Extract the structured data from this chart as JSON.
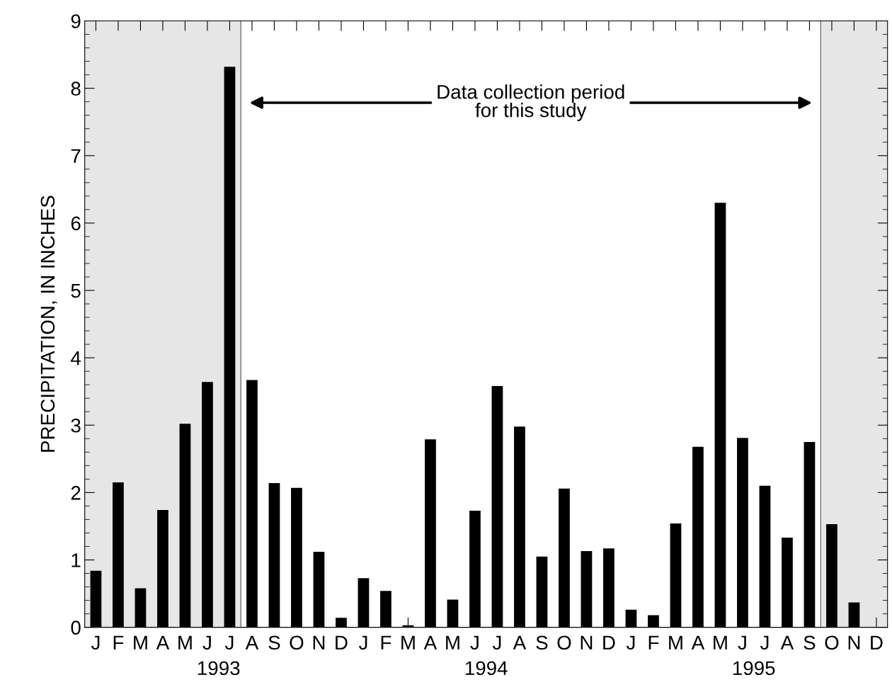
{
  "chart_data": {
    "type": "bar",
    "ylabel": "PRECIPITATION, IN INCHES",
    "categories": [
      "J",
      "F",
      "M",
      "A",
      "M",
      "J",
      "J",
      "A",
      "S",
      "O",
      "N",
      "D",
      "J",
      "F",
      "M",
      "A",
      "M",
      "J",
      "J",
      "A",
      "S",
      "O",
      "N",
      "D",
      "J",
      "F",
      "M",
      "A",
      "M",
      "J",
      "J",
      "A",
      "S",
      "O",
      "N",
      "D"
    ],
    "values": [
      0.84,
      2.15,
      0.58,
      1.74,
      3.02,
      3.64,
      8.32,
      3.67,
      2.14,
      2.07,
      1.12,
      0.14,
      0.73,
      0.54,
      0.03,
      2.79,
      0.41,
      1.73,
      3.58,
      2.98,
      1.05,
      2.06,
      1.13,
      1.17,
      0.26,
      0.18,
      1.54,
      2.68,
      6.3,
      2.81,
      2.1,
      1.33,
      2.75,
      1.53,
      0.37,
      0
    ],
    "color": "#000000",
    "ylim": [
      0,
      9
    ],
    "yticks": [
      0,
      1,
      2,
      3,
      4,
      5,
      6,
      7,
      8,
      9
    ],
    "grid": false,
    "annotations": [
      "Data collection period\nfor this study",
      "1993",
      "1994",
      "1995"
    ]
  }
}
